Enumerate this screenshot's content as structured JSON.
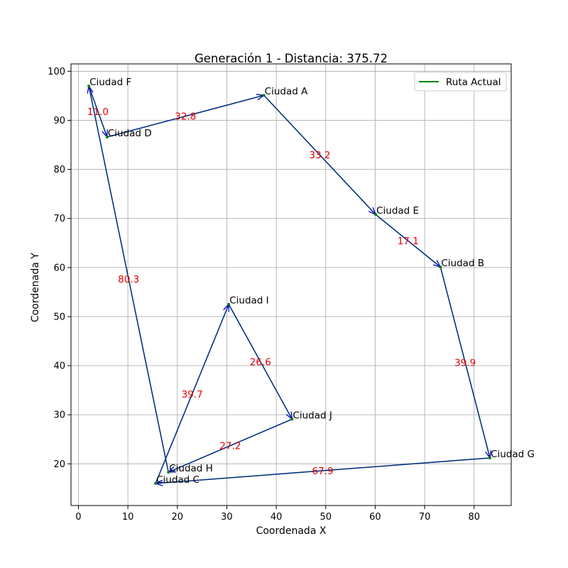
{
  "chart_data": {
    "type": "line",
    "title": "Generación 1 - Distancia: 375.72",
    "xlabel": "Coordenada X",
    "ylabel": "Coordenada Y",
    "xlim": [
      -1.5,
      87.5
    ],
    "ylim": [
      11.5,
      101.5
    ],
    "xticks": [
      0,
      10,
      20,
      30,
      40,
      50,
      60,
      70,
      80
    ],
    "yticks": [
      20,
      30,
      40,
      50,
      60,
      70,
      80,
      90,
      100
    ],
    "grid": true,
    "legend": {
      "placement": "top-right",
      "entries": [
        {
          "label": "Ruta Actual",
          "color": "#008000"
        }
      ]
    },
    "cities": [
      {
        "name": "Ciudad A",
        "x": 37.5,
        "y": 95.1
      },
      {
        "name": "Ciudad B",
        "x": 73.2,
        "y": 60.1
      },
      {
        "name": "Ciudad C",
        "x": 15.6,
        "y": 16.0
      },
      {
        "name": "Ciudad D",
        "x": 5.8,
        "y": 86.6
      },
      {
        "name": "Ciudad E",
        "x": 60.1,
        "y": 70.8
      },
      {
        "name": "Ciudad F",
        "x": 2.1,
        "y": 97.0
      },
      {
        "name": "Ciudad G",
        "x": 83.2,
        "y": 21.2
      },
      {
        "name": "Ciudad H",
        "x": 18.2,
        "y": 18.3
      },
      {
        "name": "Ciudad I",
        "x": 30.4,
        "y": 52.5
      },
      {
        "name": "Ciudad J",
        "x": 43.2,
        "y": 29.1
      }
    ],
    "route": [
      {
        "from": "Ciudad A",
        "to": "Ciudad E",
        "distance": "33.2"
      },
      {
        "from": "Ciudad E",
        "to": "Ciudad B",
        "distance": "17.1"
      },
      {
        "from": "Ciudad B",
        "to": "Ciudad G",
        "distance": "39.9"
      },
      {
        "from": "Ciudad G",
        "to": "Ciudad C",
        "distance": "67.9"
      },
      {
        "from": "Ciudad C",
        "to": "Ciudad I",
        "distance": "39.7"
      },
      {
        "from": "Ciudad I",
        "to": "Ciudad J",
        "distance": "26.6"
      },
      {
        "from": "Ciudad J",
        "to": "Ciudad H",
        "distance": "27.2"
      },
      {
        "from": "Ciudad H",
        "to": "Ciudad F",
        "distance": "80.3"
      },
      {
        "from": "Ciudad F",
        "to": "Ciudad D",
        "distance": "11.0"
      },
      {
        "from": "Ciudad D",
        "to": "Ciudad A",
        "distance": "32.8"
      }
    ],
    "colors": {
      "route": "#008000",
      "arrow": "#0000cc",
      "distance_label": "#e00000",
      "grid": "#b0b0b0"
    }
  }
}
